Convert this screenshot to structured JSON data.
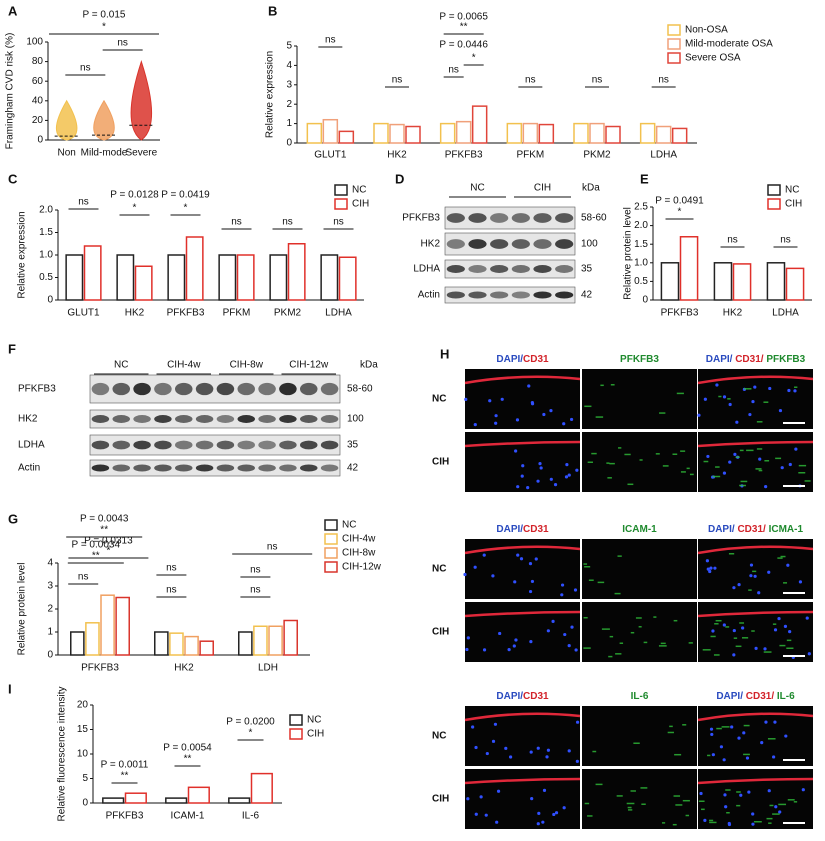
{
  "chart_data": [
    {
      "panel_label": "A",
      "type": "violin",
      "y_label": "Framingham CVD risk (%)",
      "categories": [
        "Non",
        "Mild-mode",
        "Severe"
      ],
      "medians": [
        4,
        5,
        15
      ],
      "maxima": [
        40,
        40,
        80
      ],
      "colors": [
        "#f2c14e",
        "#f0a060",
        "#d9342b"
      ],
      "ylim": [
        0,
        100
      ],
      "yticks": [
        0,
        20,
        40,
        60,
        80,
        100
      ],
      "annotations": [
        "P = 0.015",
        "*",
        "ns",
        "ns"
      ]
    },
    {
      "panel_label": "B",
      "type": "bar",
      "y_label": "Relative expression",
      "categories": [
        "GLUT1",
        "HK2",
        "PFKFB3",
        "PFKM",
        "PKM2",
        "LDHA"
      ],
      "series": [
        {
          "name": "Non-OSA",
          "color": "#f2c14e",
          "values": [
            1.0,
            1.0,
            1.0,
            1.0,
            1.0,
            1.0
          ]
        },
        {
          "name": "Mild-moderate OSA",
          "color": "#f0a07a",
          "values": [
            1.2,
            0.95,
            1.1,
            1.0,
            1.0,
            0.85
          ]
        },
        {
          "name": "Severe OSA",
          "color": "#e0453a",
          "values": [
            0.6,
            0.85,
            1.9,
            0.95,
            0.85,
            0.75
          ]
        }
      ],
      "ylim": [
        0,
        5
      ],
      "yticks": [
        0,
        1,
        2,
        3,
        4,
        5
      ],
      "annotations": [
        "ns",
        "ns",
        "P = 0.0065",
        "**",
        "P = 0.0446",
        "ns",
        "*",
        "ns",
        "ns",
        "ns"
      ]
    },
    {
      "panel_label": "C",
      "type": "bar",
      "y_label": "Relative expression",
      "categories": [
        "GLUT1",
        "HK2",
        "PFKFB3",
        "PFKM",
        "PKM2",
        "LDHA"
      ],
      "series": [
        {
          "name": "NC",
          "color": "#222222",
          "values": [
            1.0,
            1.0,
            1.0,
            1.0,
            1.0,
            1.0
          ]
        },
        {
          "name": "CIH",
          "color": "#e0302a",
          "values": [
            1.2,
            0.75,
            1.4,
            1.0,
            1.25,
            0.95
          ]
        }
      ],
      "ylim": [
        0,
        2
      ],
      "yticks": [
        0,
        0.5,
        {
          "value": 1,
          "label": "1.0"
        },
        1.5,
        {
          "value": 2,
          "label": "2.0"
        }
      ],
      "annotations": [
        "ns",
        "P = 0.0128",
        "*",
        "P = 0.0419",
        "*",
        "ns",
        "ns",
        "ns"
      ]
    },
    {
      "panel_label": "E",
      "type": "bar",
      "y_label": "Relative protein level",
      "categories": [
        "PFKFB3",
        "HK2",
        "LDHA"
      ],
      "series": [
        {
          "name": "NC",
          "color": "#222222",
          "values": [
            1.0,
            1.0,
            1.0
          ]
        },
        {
          "name": "CIH",
          "color": "#e0302a",
          "values": [
            1.7,
            0.97,
            0.85
          ]
        }
      ],
      "ylim": [
        0,
        2.5
      ],
      "yticks": [
        0,
        0.5,
        {
          "value": 1,
          "label": "1.0"
        },
        1.5,
        {
          "value": 2,
          "label": "2.0"
        },
        2.5
      ],
      "annotations": [
        "P = 0.0491",
        "*",
        "ns",
        "ns"
      ]
    },
    {
      "panel_label": "G",
      "type": "bar",
      "y_label": "Relative protein level",
      "categories": [
        "PFKFB3",
        "HK2",
        "LDH"
      ],
      "series": [
        {
          "name": "NC",
          "color": "#222222",
          "values": [
            1.0,
            1.0,
            1.0
          ]
        },
        {
          "name": "CIH-4w",
          "color": "#f2c14e",
          "values": [
            1.4,
            0.95,
            1.25
          ]
        },
        {
          "name": "CIH-8w",
          "color": "#f0a060",
          "values": [
            2.6,
            0.8,
            1.25
          ]
        },
        {
          "name": "CIH-12w",
          "color": "#d9342b",
          "values": [
            2.5,
            0.6,
            1.5
          ]
        }
      ],
      "ylim": [
        0,
        4
      ],
      "yticks": [
        0,
        1,
        2,
        3,
        4
      ],
      "annotations": [
        "P = 0.0043",
        "**",
        "P = 0.0034",
        "**",
        "ns",
        "P = 0.0313",
        "*",
        "ns",
        "ns",
        "ns",
        "ns",
        "ns"
      ]
    },
    {
      "panel_label": "I",
      "type": "bar",
      "y_label": "Relative fluorescence intensity",
      "categories": [
        "PFKFB3",
        "ICAM-1",
        "IL-6"
      ],
      "series": [
        {
          "name": "NC",
          "color": "#222222",
          "values": [
            1.0,
            1.0,
            1.0
          ]
        },
        {
          "name": "CIH",
          "color": "#e0302a",
          "values": [
            2.0,
            3.2,
            6.0
          ]
        }
      ],
      "ylim": [
        0,
        20
      ],
      "yticks": [
        0,
        5,
        10,
        15,
        20
      ],
      "annotations": [
        "P = 0.0011",
        "**",
        "P = 0.0054",
        "**",
        "P = 0.0200",
        "*"
      ]
    }
  ],
  "blots": [
    {
      "panel_label": "D",
      "groups": [
        "NC",
        "CIH"
      ],
      "unit": "kDa",
      "rows": [
        {
          "protein": "PFKFB3",
          "size": "58-60"
        },
        {
          "protein": "HK2",
          "size": "100"
        },
        {
          "protein": "LDHA",
          "size": "35"
        },
        {
          "protein": "Actin",
          "size": "42"
        }
      ]
    },
    {
      "panel_label": "F",
      "groups": [
        "NC",
        "CIH-4w",
        "CIH-8w",
        "CIH-12w"
      ],
      "unit": "kDa",
      "rows": [
        {
          "protein": "PFKFB3",
          "size": "58-60"
        },
        {
          "protein": "HK2",
          "size": "100"
        },
        {
          "protein": "LDHA",
          "size": "35"
        },
        {
          "protein": "Actin",
          "size": "42"
        }
      ]
    }
  ],
  "images": {
    "panel_label": "H",
    "groups": [
      {
        "headers": [
          [
            "DAPI/",
            "CD31"
          ],
          [
            "PFKFB3"
          ],
          [
            "DAPI/ ",
            "CD31/ ",
            "PFKFB3"
          ]
        ],
        "rows": [
          "NC",
          "CIH"
        ]
      },
      {
        "headers": [
          [
            "DAPI/",
            "CD31"
          ],
          [
            "ICAM-1"
          ],
          [
            "DAPI/ ",
            "CD31/ ",
            "ICMA-1"
          ]
        ],
        "rows": [
          "NC",
          "CIH"
        ]
      },
      {
        "headers": [
          [
            "DAPI/",
            "CD31"
          ],
          [
            "IL-6"
          ],
          [
            "DAPI/ ",
            "CD31/ ",
            "IL-6"
          ]
        ],
        "rows": [
          "NC",
          "CIH"
        ]
      }
    ]
  }
}
